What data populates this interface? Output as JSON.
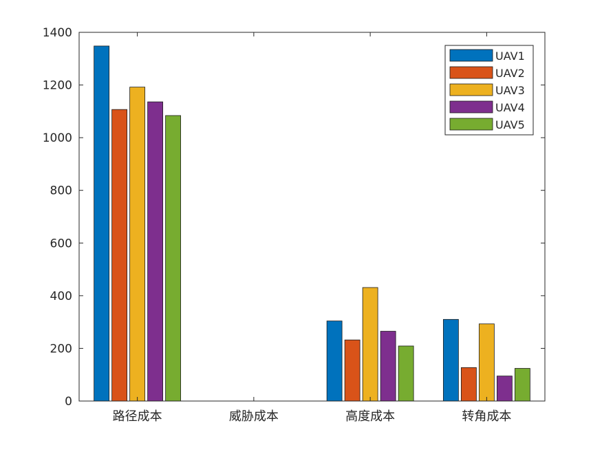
{
  "chart_data": {
    "type": "bar",
    "title": "",
    "xlabel": "",
    "ylabel": "",
    "categories": [
      "路径成本",
      "威胁成本",
      "高度成本",
      "转角成本"
    ],
    "series": [
      {
        "name": "UAV1",
        "color": "#0072BD",
        "values": [
          1348,
          0,
          304,
          310
        ]
      },
      {
        "name": "UAV2",
        "color": "#D95319",
        "values": [
          1107,
          0,
          232,
          127
        ]
      },
      {
        "name": "UAV3",
        "color": "#EDB120",
        "values": [
          1192,
          0,
          431,
          293
        ]
      },
      {
        "name": "UAV4",
        "color": "#7E2F8E",
        "values": [
          1136,
          0,
          265,
          95
        ]
      },
      {
        "name": "UAV5",
        "color": "#77AC30",
        "values": [
          1084,
          0,
          209,
          124
        ]
      }
    ],
    "ylim": [
      0,
      1400
    ],
    "yticks": [
      0,
      200,
      400,
      600,
      800,
      1000,
      1200,
      1400
    ],
    "grid": false,
    "legend_position": "top-right"
  }
}
